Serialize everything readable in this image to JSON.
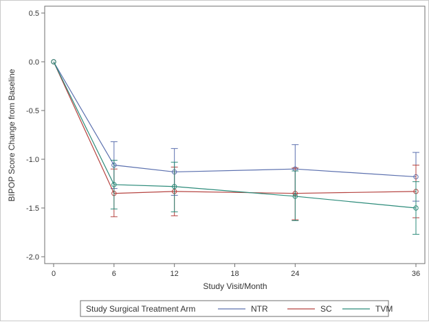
{
  "chart_data": {
    "type": "line",
    "xlabel": "Study Visit/Month",
    "ylabel": "BIPOP Score Change from Baseline",
    "xlim": [
      0,
      36
    ],
    "ylim": [
      -2.0,
      0.5
    ],
    "x_ticks": [
      "0",
      "6",
      "12",
      "18",
      "24",
      "36"
    ],
    "x_tick_values": [
      0,
      6,
      12,
      18,
      24,
      36
    ],
    "y_ticks": [
      "0.5",
      "0.0",
      "-0.5",
      "-1.0",
      "-1.5",
      "-2.0"
    ],
    "y_tick_values": [
      0.5,
      0.0,
      -0.5,
      -1.0,
      -1.5,
      -2.0
    ],
    "legend": {
      "title": "Study Surgical Treatment Arm",
      "position": "bottom"
    },
    "series": [
      {
        "name": "NTR",
        "color": "#5a6fae",
        "x": [
          0,
          6,
          12,
          24,
          36
        ],
        "y": [
          0.0,
          -1.06,
          -1.13,
          -1.1,
          -1.18
        ],
        "lower": [
          0.0,
          -1.3,
          -1.37,
          -1.35,
          -1.43
        ],
        "upper": [
          0.0,
          -0.82,
          -0.89,
          -0.85,
          -0.93
        ]
      },
      {
        "name": "SC",
        "color": "#b5423f",
        "x": [
          0,
          6,
          12,
          24,
          36
        ],
        "y": [
          0.0,
          -1.35,
          -1.33,
          -1.35,
          -1.33
        ],
        "lower": [
          0.0,
          -1.59,
          -1.58,
          -1.62,
          -1.6
        ],
        "upper": [
          0.0,
          -1.1,
          -1.08,
          -1.09,
          -1.06
        ]
      },
      {
        "name": "TVM",
        "color": "#2a8a79",
        "x": [
          0,
          6,
          12,
          24,
          36
        ],
        "y": [
          0.0,
          -1.26,
          -1.28,
          -1.38,
          -1.5
        ],
        "lower": [
          0.0,
          -1.51,
          -1.54,
          -1.63,
          -1.77
        ],
        "upper": [
          0.0,
          -1.01,
          -1.03,
          -1.12,
          -1.23
        ]
      }
    ]
  }
}
